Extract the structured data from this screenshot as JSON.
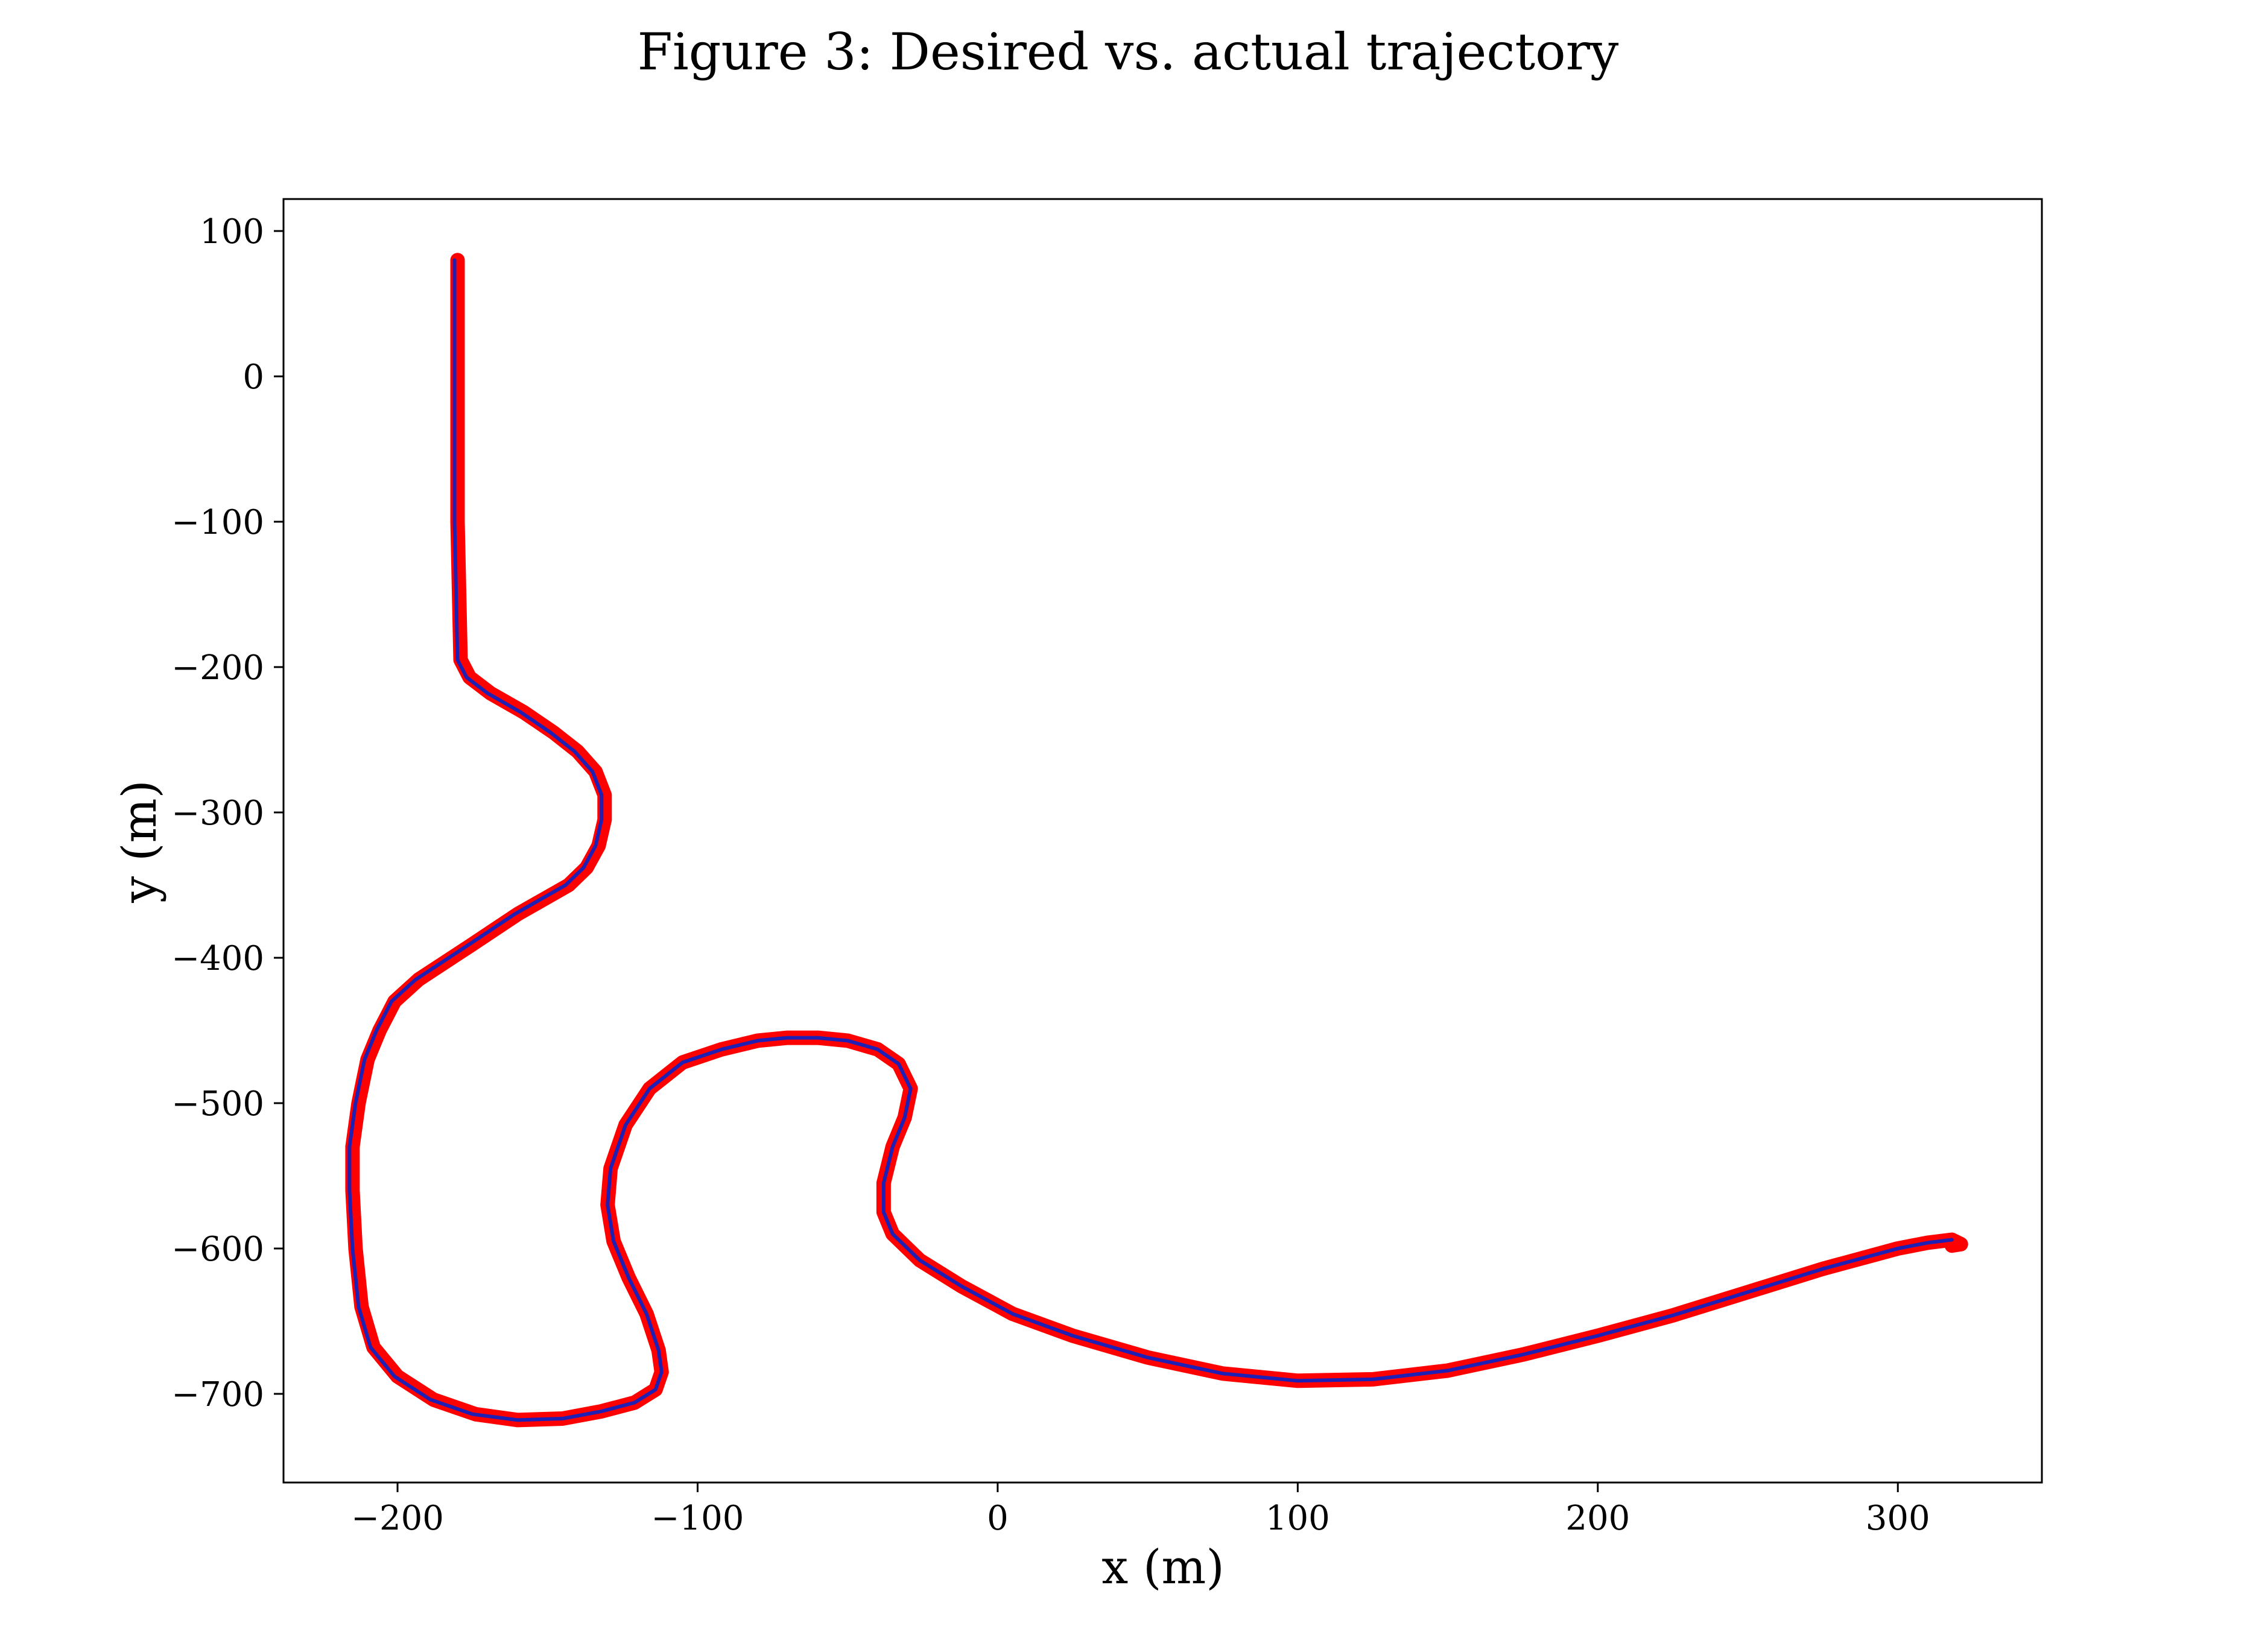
{
  "figure": {
    "title": "Figure 3: Desired vs. actual trajectory"
  },
  "chart_data": {
    "type": "line",
    "title": "Figure 3: Desired vs. actual trajectory",
    "xlabel": "x (m)",
    "ylabel": "y (m)",
    "xlim": [
      -238,
      348
    ],
    "ylim": [
      -761,
      122
    ],
    "grid": false,
    "legend": "none",
    "x_ticks": [
      -200,
      -100,
      0,
      100,
      200,
      300
    ],
    "x_tick_labels": [
      "−200",
      "−100",
      "0",
      "100",
      "200",
      "300"
    ],
    "y_ticks": [
      100,
      0,
      -100,
      -200,
      -300,
      -400,
      -500,
      -600,
      -700
    ],
    "y_tick_labels": [
      "100",
      "0",
      "−100",
      "−200",
      "−300",
      "−400",
      "−500",
      "−600",
      "−700"
    ],
    "colors": {
      "actual": "#ff0000",
      "desired": "#1f1fb4"
    },
    "series": [
      {
        "color": "#ff0000",
        "style": "thick",
        "points": [
          [
            -180,
            80
          ],
          [
            -180,
            0
          ],
          [
            -180,
            -100
          ],
          [
            -179,
            -195
          ],
          [
            -176,
            -207
          ],
          [
            -169,
            -218
          ],
          [
            -158,
            -231
          ],
          [
            -148,
            -245
          ],
          [
            -140,
            -258
          ],
          [
            -134,
            -272
          ],
          [
            -131,
            -288
          ],
          [
            -131,
            -305
          ],
          [
            -133,
            -323
          ],
          [
            -137,
            -338
          ],
          [
            -143,
            -350
          ],
          [
            -160,
            -370
          ],
          [
            -176,
            -392
          ],
          [
            -193,
            -415
          ],
          [
            -201,
            -430
          ],
          [
            -206,
            -450
          ],
          [
            -210,
            -470
          ],
          [
            -213,
            -500
          ],
          [
            -215,
            -530
          ],
          [
            -215,
            -560
          ],
          [
            -214,
            -600
          ],
          [
            -212,
            -640
          ],
          [
            -208,
            -668
          ],
          [
            -200,
            -688
          ],
          [
            -188,
            -704
          ],
          [
            -174,
            -714
          ],
          [
            -160,
            -718
          ],
          [
            -145,
            -717
          ],
          [
            -132,
            -712
          ],
          [
            -121,
            -706
          ],
          [
            -114,
            -697
          ],
          [
            -112,
            -685
          ],
          [
            -113,
            -670
          ],
          [
            -117,
            -645
          ],
          [
            -123,
            -620
          ],
          [
            -128,
            -595
          ],
          [
            -130,
            -570
          ],
          [
            -129,
            -545
          ],
          [
            -124,
            -515
          ],
          [
            -116,
            -490
          ],
          [
            -105,
            -472
          ],
          [
            -92,
            -463
          ],
          [
            -80,
            -457
          ],
          [
            -70,
            -455
          ],
          [
            -60,
            -455
          ],
          [
            -50,
            -457
          ],
          [
            -40,
            -463
          ],
          [
            -33,
            -473
          ],
          [
            -29,
            -490
          ],
          [
            -31,
            -510
          ],
          [
            -35,
            -530
          ],
          [
            -38,
            -555
          ],
          [
            -38,
            -575
          ],
          [
            -35,
            -590
          ],
          [
            -26,
            -608
          ],
          [
            -12,
            -626
          ],
          [
            5,
            -645
          ],
          [
            25,
            -660
          ],
          [
            50,
            -675
          ],
          [
            75,
            -686
          ],
          [
            100,
            -691
          ],
          [
            125,
            -690
          ],
          [
            150,
            -684
          ],
          [
            175,
            -673
          ],
          [
            200,
            -660
          ],
          [
            225,
            -646
          ],
          [
            250,
            -630
          ],
          [
            275,
            -614
          ],
          [
            300,
            -600
          ],
          [
            310,
            -596
          ],
          [
            318,
            -594
          ],
          [
            321,
            -597
          ],
          [
            318,
            -598
          ]
        ]
      },
      {
        "color": "#1f1fb4",
        "style": "thin",
        "points": [
          [
            -181,
            80
          ],
          [
            -181,
            0
          ],
          [
            -181,
            -100
          ],
          [
            -180,
            -195
          ],
          [
            -177,
            -207
          ],
          [
            -170,
            -218
          ],
          [
            -159,
            -231
          ],
          [
            -149,
            -245
          ],
          [
            -141,
            -258
          ],
          [
            -135,
            -272
          ],
          [
            -132,
            -288
          ],
          [
            -132,
            -305
          ],
          [
            -134,
            -323
          ],
          [
            -138,
            -338
          ],
          [
            -144,
            -350
          ],
          [
            -161,
            -370
          ],
          [
            -177,
            -392
          ],
          [
            -194,
            -415
          ],
          [
            -202,
            -430
          ],
          [
            -207,
            -450
          ],
          [
            -211,
            -470
          ],
          [
            -214,
            -500
          ],
          [
            -216,
            -530
          ],
          [
            -216,
            -560
          ],
          [
            -215,
            -600
          ],
          [
            -213,
            -640
          ],
          [
            -209,
            -668
          ],
          [
            -201,
            -688
          ],
          [
            -189,
            -704
          ],
          [
            -175,
            -714
          ],
          [
            -160,
            -718
          ],
          [
            -145,
            -717
          ],
          [
            -132,
            -712
          ],
          [
            -121,
            -706
          ],
          [
            -114,
            -697
          ],
          [
            -112,
            -685
          ],
          [
            -113,
            -670
          ],
          [
            -117,
            -645
          ],
          [
            -123,
            -620
          ],
          [
            -128,
            -595
          ],
          [
            -130,
            -570
          ],
          [
            -129,
            -545
          ],
          [
            -124,
            -515
          ],
          [
            -116,
            -490
          ],
          [
            -105,
            -472
          ],
          [
            -92,
            -463
          ],
          [
            -80,
            -457
          ],
          [
            -70,
            -455
          ],
          [
            -60,
            -455
          ],
          [
            -50,
            -457
          ],
          [
            -40,
            -463
          ],
          [
            -33,
            -473
          ],
          [
            -29,
            -490
          ],
          [
            -31,
            -510
          ],
          [
            -35,
            -530
          ],
          [
            -38,
            -555
          ],
          [
            -38,
            -575
          ],
          [
            -35,
            -590
          ],
          [
            -26,
            -608
          ],
          [
            -12,
            -626
          ],
          [
            5,
            -645
          ],
          [
            25,
            -660
          ],
          [
            50,
            -675
          ],
          [
            75,
            -686
          ],
          [
            100,
            -691
          ],
          [
            125,
            -690
          ],
          [
            150,
            -684
          ],
          [
            175,
            -673
          ],
          [
            200,
            -660
          ],
          [
            225,
            -646
          ],
          [
            250,
            -630
          ],
          [
            275,
            -614
          ],
          [
            300,
            -600
          ],
          [
            310,
            -596
          ],
          [
            318,
            -594
          ]
        ]
      }
    ]
  }
}
